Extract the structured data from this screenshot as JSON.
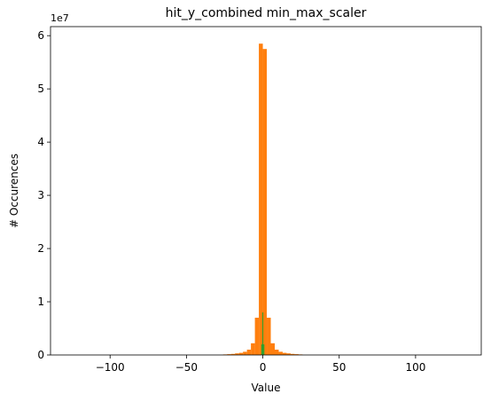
{
  "chart_data": {
    "type": "histogram",
    "title": "hit_y_combined min_max_scaler",
    "x_label": "Value",
    "y_label": "# Occurences",
    "y_offset_label": "1e7",
    "xlim": [
      -139,
      143
    ],
    "ylim": [
      0,
      61700000
    ],
    "xticks": [
      {
        "value": -100,
        "label": "−100"
      },
      {
        "value": -50,
        "label": "−50"
      },
      0,
      50,
      100
    ],
    "yticks": [
      0,
      {
        "value": 10000000,
        "label": "1"
      },
      {
        "value": 20000000,
        "label": "2"
      },
      {
        "value": 30000000,
        "label": "3"
      },
      {
        "value": 40000000,
        "label": "4"
      },
      {
        "value": 50000000,
        "label": "5"
      },
      {
        "value": 60000000,
        "label": "6"
      }
    ],
    "series": [
      {
        "color": "#ff7f0e",
        "bins": [
          -26,
          -23.4,
          -20.8,
          -18.2,
          -15.6,
          -13,
          -10.4,
          -7.8,
          -5.2,
          -2.6,
          0,
          2.6,
          5.2,
          7.8,
          10.4,
          13,
          15.6,
          18.2,
          20.8,
          23.4,
          26
        ],
        "values": [
          100000,
          150000,
          200000,
          300000,
          400000,
          600000,
          1000000,
          2200000,
          7000000,
          58500000,
          57500000,
          7000000,
          2200000,
          1000000,
          600000,
          400000,
          300000,
          200000,
          150000,
          100000
        ]
      },
      {
        "color": "#2ca02c",
        "bins": [
          -1,
          -0.3,
          0.3,
          1
        ],
        "values": [
          2000000,
          8000000,
          2000000
        ]
      }
    ]
  }
}
